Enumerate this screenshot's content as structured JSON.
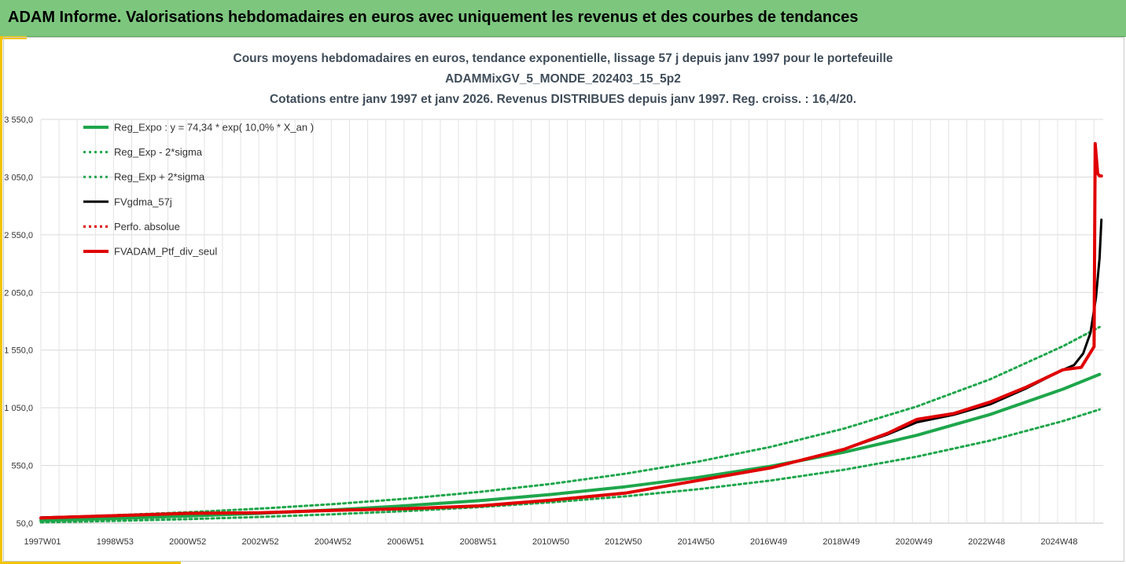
{
  "banner": {
    "title": "ADAM Informe. Valorisations hebdomadaires en euros avec uniquement les revenus et des courbes de tendances"
  },
  "colors": {
    "banner": "#7dc67e",
    "accent": "#f2c500",
    "trend": "#1ea64b",
    "smoothed": "#000000",
    "portfolio": "#e00000"
  },
  "chart_data": {
    "type": "line",
    "title": "Cours moyens hebdomadaires  en euros, tendance exponentielle, lissage 57 j depuis janv 1997 pour le portefeuille",
    "subtitle": "ADAMMixGV_5_MONDE_202403_15_5p2",
    "subtitle2": "Cotations entre janv 1997 et janv 2026. Revenus DISTRIBUES depuis janv 1997. Reg. croiss. : 16,4/20.",
    "x_tick_labels": [
      "1997W01",
      "1998W53",
      "2000W52",
      "2002W52",
      "2004W52",
      "2006W51",
      "2008W51",
      "2010W50",
      "2012W50",
      "2014W50",
      "2016W49",
      "2018W49",
      "2020W49",
      "2022W48",
      "2024W48"
    ],
    "y_tick_labels": [
      "50,0",
      "550,0",
      "1 050,0",
      "1 550,0",
      "2 050,0",
      "2 550,0",
      "3 050,0",
      "3 550,0"
    ],
    "ylim": [
      50,
      3550
    ],
    "xlim": [
      1997.0,
      2026.1
    ],
    "grid": true,
    "legend_position": "top-left",
    "series": [
      {
        "name": "Reg_Expo : y = 74,34 * exp( 10,0% *  X_an )",
        "style": "solid-thick",
        "color": "#1ea64b",
        "x": [
          1997,
          1999,
          2001,
          2003,
          2005,
          2007,
          2009,
          2011,
          2013,
          2015,
          2017,
          2019,
          2021,
          2023,
          2025,
          2026
        ],
        "y": [
          74,
          91,
          111,
          135,
          165,
          201,
          245,
          299,
          365,
          446,
          544,
          665,
          812,
          992,
          1212,
          1340
        ]
      },
      {
        "name": "Reg_Exp - 2*sigma",
        "style": "dotted",
        "color": "#1ea64b",
        "x": [
          1997,
          1999,
          2001,
          2003,
          2005,
          2007,
          2009,
          2011,
          2013,
          2015,
          2017,
          2019,
          2021,
          2023,
          2025,
          2026
        ],
        "y": [
          57,
          70,
          85,
          104,
          127,
          155,
          189,
          231,
          282,
          344,
          420,
          513,
          627,
          766,
          935,
          1035
        ]
      },
      {
        "name": "Reg_Exp + 2*sigma",
        "style": "dotted",
        "color": "#1ea64b",
        "x": [
          1997,
          1999,
          2001,
          2003,
          2005,
          2007,
          2009,
          2011,
          2013,
          2015,
          2017,
          2019,
          2021,
          2023,
          2025,
          2026
        ],
        "y": [
          97,
          118,
          144,
          176,
          215,
          262,
          320,
          391,
          478,
          583,
          712,
          870,
          1062,
          1297,
          1584,
          1750
        ]
      },
      {
        "name": "FVgdma_57j",
        "style": "solid",
        "color": "#000000",
        "x": [
          1997,
          1999,
          2001,
          2003,
          2005,
          2007,
          2009,
          2011,
          2013,
          2015,
          2017,
          2019,
          2020.2,
          2021,
          2022,
          2023,
          2024,
          2025,
          2025.3,
          2025.55,
          2025.75,
          2025.9,
          2026.0,
          2026.05
        ],
        "y": [
          100,
          115,
          135,
          140,
          160,
          175,
          200,
          250,
          310,
          420,
          530,
          690,
          820,
          925,
          990,
          1080,
          1220,
          1380,
          1420,
          1520,
          1700,
          2000,
          2350,
          2680
        ]
      },
      {
        "name": "Perfo. absolue",
        "style": "dotted",
        "color": "#e00000",
        "x": [
          1997,
          1999,
          2001,
          2003,
          2005,
          2007,
          2009,
          2011,
          2013,
          2015,
          2017,
          2019,
          2020.2,
          2021,
          2022,
          2023,
          2024,
          2025,
          2025.5,
          2025.85,
          2025.88,
          2025.95,
          2026.0,
          2026.05
        ],
        "y": [
          95,
          115,
          135,
          140,
          160,
          175,
          200,
          250,
          310,
          420,
          530,
          690,
          830,
          950,
          1000,
          1100,
          1230,
          1380,
          1400,
          1580,
          3340,
          3080,
          3060,
          3060
        ]
      },
      {
        "name": "FVADAM_Ptf_div_seul",
        "style": "solid-thick",
        "color": "#e00000",
        "x": [
          1997,
          1999,
          2001,
          2003,
          2005,
          2007,
          2009,
          2011,
          2013,
          2015,
          2017,
          2019,
          2020.2,
          2021,
          2022,
          2023,
          2024,
          2025,
          2025.5,
          2025.85,
          2025.88,
          2025.95,
          2026.0,
          2026.05
        ],
        "y": [
          95,
          115,
          135,
          140,
          160,
          175,
          200,
          250,
          310,
          420,
          530,
          690,
          830,
          950,
          1000,
          1100,
          1230,
          1380,
          1400,
          1580,
          3340,
          3080,
          3060,
          3060
        ]
      }
    ]
  }
}
